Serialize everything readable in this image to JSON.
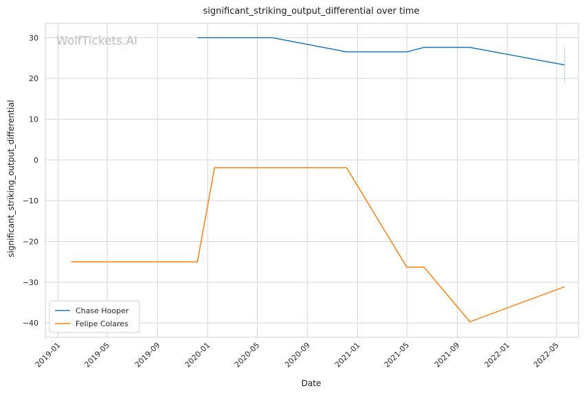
{
  "chart_data": {
    "type": "line",
    "title": "significant_striking_output_differential over time",
    "xlabel": "Date",
    "ylabel": "significant_striking_output_differential",
    "watermark": "WolfTickets.AI",
    "x_ticks": [
      "2019-01",
      "2019-05",
      "2019-09",
      "2020-01",
      "2020-05",
      "2020-09",
      "2021-01",
      "2021-05",
      "2021-09",
      "2022-01",
      "2022-05"
    ],
    "y_ticks": [
      30,
      20,
      10,
      0,
      -10,
      -20,
      -30,
      -40
    ],
    "xlim": [
      "2018-12-01",
      "2022-06-24"
    ],
    "ylim": [
      -43.5,
      33.5
    ],
    "grid": true,
    "legend_position": "lower-left",
    "series": [
      {
        "name": "Chase Hooper",
        "color": "#1f77b4",
        "points": [
          {
            "x": "2019-12-07",
            "y": 30.0
          },
          {
            "x": "2020-06-06",
            "y": 30.0
          },
          {
            "x": "2020-12-05",
            "y": 26.5
          },
          {
            "x": "2021-05-01",
            "y": 26.5
          },
          {
            "x": "2021-06-12",
            "y": 27.6
          },
          {
            "x": "2021-10-02",
            "y": 27.6
          },
          {
            "x": "2022-05-21",
            "y": 23.3
          }
        ],
        "error_bar": {
          "x": "2022-05-21",
          "low": 18.8,
          "high": 27.5
        }
      },
      {
        "name": "Felipe Colares",
        "color": "#ff7f0e",
        "points": [
          {
            "x": "2019-02-02",
            "y": -25.0
          },
          {
            "x": "2019-12-07",
            "y": -25.0
          },
          {
            "x": "2020-01-18",
            "y": -1.9
          },
          {
            "x": "2020-12-05",
            "y": -1.9
          },
          {
            "x": "2021-05-01",
            "y": -26.3
          },
          {
            "x": "2021-06-12",
            "y": -26.3
          },
          {
            "x": "2021-10-02",
            "y": -39.7
          },
          {
            "x": "2022-05-21",
            "y": -31.1
          }
        ]
      }
    ]
  }
}
